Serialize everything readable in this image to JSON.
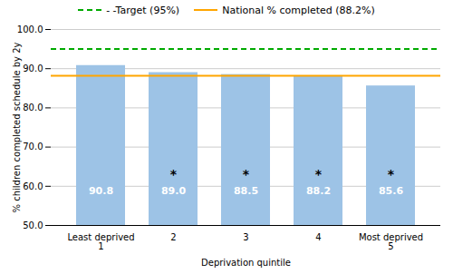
{
  "chart_data": {
    "type": "bar",
    "categories": [
      "Least deprived\n1",
      "2",
      "3",
      "4",
      "Most deprived\n5"
    ],
    "values": [
      90.8,
      89.0,
      88.5,
      88.2,
      85.6
    ],
    "value_labels": [
      "90.8",
      "89.0",
      "88.5",
      "88.2",
      "85.6"
    ],
    "data_labels": true,
    "color": "#9DC3E6",
    "xlabel": "Deprivation quintile",
    "ylabel": "% children completed schedule by 2y",
    "ylim": [
      50.0,
      100.0
    ],
    "yticks": [
      {
        "value": 50.0,
        "label": "50.0"
      },
      {
        "value": 60.0,
        "label": "60.0"
      },
      {
        "value": 70.0,
        "label": "70.0"
      },
      {
        "value": 80.0,
        "label": "80.0"
      },
      {
        "value": 90.0,
        "label": "90.0"
      },
      {
        "value": 100.0,
        "label": "100.0"
      }
    ],
    "grid": true,
    "legend": "top",
    "lines": [
      {
        "name": "- -Target (95%)",
        "value": 95.0,
        "color": "#00AA00",
        "line_style": "dashed"
      },
      {
        "name": "National % completed (88.2%)",
        "value": 88.2,
        "color": "#FFA500",
        "line_style": "solid"
      }
    ],
    "annotations": [
      {
        "category": "2",
        "text": "*"
      },
      {
        "category": "3",
        "text": "*"
      },
      {
        "category": "4",
        "text": "*"
      },
      {
        "category": "Most deprived\n5",
        "text": "*"
      }
    ]
  }
}
